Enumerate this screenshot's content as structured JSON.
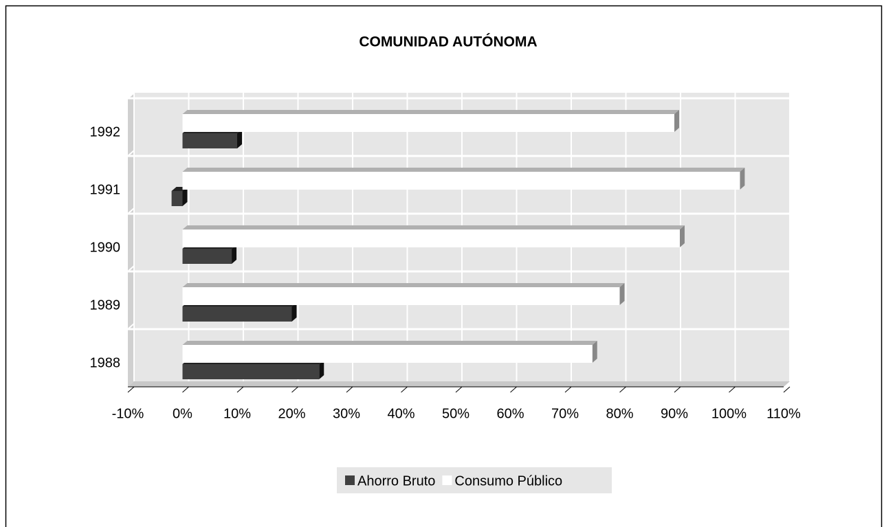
{
  "chart_data": {
    "type": "bar",
    "orientation": "horizontal",
    "title": "COMUNIDAD AUTÓNOMA",
    "categories": [
      "1988",
      "1989",
      "1990",
      "1991",
      "1992"
    ],
    "series": [
      {
        "name": "Ahorro Bruto",
        "color": "#404040",
        "values": [
          25,
          20,
          9,
          -2,
          10
        ]
      },
      {
        "name": "Consumo Público",
        "color": "#ffffff",
        "values": [
          75,
          80,
          91,
          102,
          90
        ]
      }
    ],
    "xlim": [
      -10,
      110
    ],
    "xticks": [
      {
        "value": -10,
        "label": "-10%"
      },
      {
        "value": 0,
        "label": "0%"
      },
      {
        "value": 10,
        "label": "10%"
      },
      {
        "value": 20,
        "label": "20%"
      },
      {
        "value": 30,
        "label": "30%"
      },
      {
        "value": 40,
        "label": "40%"
      },
      {
        "value": 50,
        "label": "50%"
      },
      {
        "value": 60,
        "label": "60%"
      },
      {
        "value": 70,
        "label": "70%"
      },
      {
        "value": 80,
        "label": "80%"
      },
      {
        "value": 90,
        "label": "90%"
      },
      {
        "value": 100,
        "label": "100%"
      },
      {
        "value": 110,
        "label": "110%"
      }
    ],
    "grid": true,
    "legend": "bottom"
  }
}
